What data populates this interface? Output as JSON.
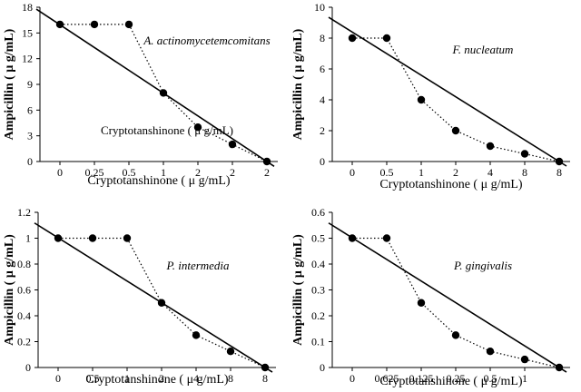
{
  "chart_data": [
    {
      "type": "line",
      "title": "A. actinomycetemcomitans",
      "annotation": "Cryptotanshinone ( μ g/mL)",
      "xlabel": "Cryptotanshinone ( μ g/mL)",
      "ylabel": "Ampicillin ( μ g/mL)",
      "categories": [
        "0",
        "0.25",
        "0.5",
        "1",
        "2",
        "2",
        "2"
      ],
      "ylim": [
        0,
        18
      ],
      "yticks": [
        0,
        3,
        6,
        9,
        12,
        15,
        18
      ],
      "series": [
        {
          "style": "dotted-markers",
          "values": [
            16,
            16,
            16,
            8,
            4,
            2,
            0
          ]
        },
        {
          "style": "solid-line",
          "y_start": 17.5,
          "y_end": 0
        }
      ]
    },
    {
      "type": "line",
      "title": "F. nucleatum",
      "xlabel": "Cryptotanshinone ( μ g/mL)",
      "ylabel": "Ampicillin ( μ g/mL)",
      "categories": [
        "0",
        "0.5",
        "1",
        "2",
        "4",
        "8",
        "8"
      ],
      "ylim": [
        0,
        10
      ],
      "yticks": [
        0,
        2,
        4,
        6,
        8,
        10
      ],
      "series": [
        {
          "style": "dotted-markers",
          "values": [
            8,
            8,
            4,
            2,
            1,
            0.5,
            0
          ]
        },
        {
          "style": "solid-line",
          "y_start": 9.2,
          "y_end": 0
        }
      ]
    },
    {
      "type": "line",
      "title": "P. intermedia",
      "xlabel": "Cryptotanshinone ( μ g/mL)",
      "ylabel": "Ampicillin ( μ g/mL)",
      "categories": [
        "0",
        "0.5",
        "1",
        "2",
        "4",
        "8",
        "8"
      ],
      "ylim": [
        0,
        1.2
      ],
      "yticks": [
        0,
        0.2,
        0.4,
        0.6,
        0.8,
        1,
        1.2
      ],
      "series": [
        {
          "style": "dotted-markers",
          "values": [
            1,
            1,
            1,
            0.5,
            0.25,
            0.125,
            0
          ]
        },
        {
          "style": "solid-line",
          "y_start": 1.1,
          "y_end": 0
        }
      ]
    },
    {
      "type": "line",
      "title": "P. gingivalis",
      "xlabel": "Cryptotanshinone ( μ g/mL)",
      "ylabel": "Ampicillin ( μ g/mL)",
      "categories": [
        "0",
        "0.625",
        "0.125",
        "0.25",
        "0.5",
        "1",
        ""
      ],
      "ylim": [
        0,
        0.6
      ],
      "yticks": [
        0,
        0.1,
        0.2,
        0.3,
        0.4,
        0.5,
        0.6
      ],
      "series": [
        {
          "style": "dotted-markers",
          "values": [
            0.5,
            0.5,
            0.25,
            0.125,
            0.0625,
            0.03125,
            0
          ]
        },
        {
          "style": "solid-line",
          "y_start": 0.55,
          "y_end": 0
        }
      ]
    }
  ]
}
